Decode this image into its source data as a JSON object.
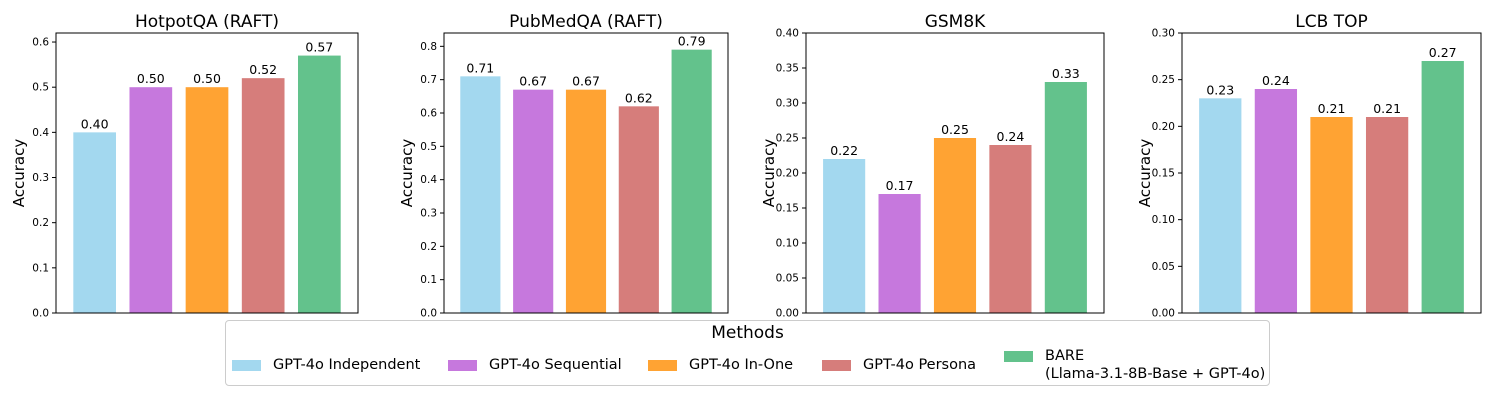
{
  "chart_data": [
    {
      "type": "bar",
      "title": "HotpotQA (RAFT)",
      "ylabel": "Accuracy",
      "xlabel": "",
      "ylim": [
        0,
        0.62
      ],
      "yticks": [
        "0.0",
        "0.1",
        "0.2",
        "0.3",
        "0.4",
        "0.5",
        "0.6"
      ],
      "yticks_values": [
        0,
        0.1,
        0.2,
        0.3,
        0.4,
        0.5,
        0.6
      ],
      "categories": [
        "GPT-4o Independent",
        "GPT-4o Sequential",
        "GPT-4o In-One",
        "GPT-4o Persona",
        "BARE"
      ],
      "values": [
        0.4,
        0.5,
        0.5,
        0.52,
        0.57
      ],
      "data_labels": [
        "0.40",
        "0.50",
        "0.50",
        "0.52",
        "0.57"
      ]
    },
    {
      "type": "bar",
      "title": "PubMedQA (RAFT)",
      "ylabel": "Accuracy",
      "xlabel": "",
      "ylim": [
        0,
        0.84
      ],
      "yticks": [
        "0.0",
        "0.1",
        "0.2",
        "0.3",
        "0.4",
        "0.5",
        "0.6",
        "0.7",
        "0.8"
      ],
      "yticks_values": [
        0,
        0.1,
        0.2,
        0.3,
        0.4,
        0.5,
        0.6,
        0.7,
        0.8
      ],
      "categories": [
        "GPT-4o Independent",
        "GPT-4o Sequential",
        "GPT-4o In-One",
        "GPT-4o Persona",
        "BARE"
      ],
      "values": [
        0.71,
        0.67,
        0.67,
        0.62,
        0.79
      ],
      "data_labels": [
        "0.71",
        "0.67",
        "0.67",
        "0.62",
        "0.79"
      ]
    },
    {
      "type": "bar",
      "title": "GSM8K",
      "ylabel": "Accuracy",
      "xlabel": "",
      "ylim": [
        0,
        0.4
      ],
      "yticks": [
        "0.00",
        "0.05",
        "0.10",
        "0.15",
        "0.20",
        "0.25",
        "0.30",
        "0.35",
        "0.40"
      ],
      "yticks_values": [
        0,
        0.05,
        0.1,
        0.15,
        0.2,
        0.25,
        0.3,
        0.35,
        0.4
      ],
      "categories": [
        "GPT-4o Independent",
        "GPT-4o Sequential",
        "GPT-4o In-One",
        "GPT-4o Persona",
        "BARE"
      ],
      "values": [
        0.22,
        0.17,
        0.25,
        0.24,
        0.33
      ],
      "data_labels": [
        "0.22",
        "0.17",
        "0.25",
        "0.24",
        "0.33"
      ]
    },
    {
      "type": "bar",
      "title": "LCB TOP",
      "ylabel": "Accuracy",
      "xlabel": "",
      "ylim": [
        0,
        0.3
      ],
      "yticks": [
        "0.00",
        "0.05",
        "0.10",
        "0.15",
        "0.20",
        "0.25",
        "0.30"
      ],
      "yticks_values": [
        0,
        0.05,
        0.1,
        0.15,
        0.2,
        0.25,
        0.3
      ],
      "categories": [
        "GPT-4o Independent",
        "GPT-4o Sequential",
        "GPT-4o In-One",
        "GPT-4o Persona",
        "BARE"
      ],
      "values": [
        0.23,
        0.24,
        0.21,
        0.21,
        0.27
      ],
      "data_labels": [
        "0.23",
        "0.24",
        "0.21",
        "0.21",
        "0.27"
      ]
    }
  ],
  "colors": [
    "#a3d8ef",
    "#c678dd",
    "#ffa333",
    "#d67d7b",
    "#63c28c"
  ],
  "legend": {
    "title": "Methods",
    "items": [
      {
        "label": "GPT-4o Independent",
        "color": "#a3d8ef"
      },
      {
        "label": "GPT-4o Sequential",
        "color": "#c678dd"
      },
      {
        "label": "GPT-4o In-One",
        "color": "#ffa333"
      },
      {
        "label": "GPT-4o Persona",
        "color": "#d67d7b"
      },
      {
        "label": "BARE\n(Llama-3.1-8B-Base + GPT-4o)",
        "color": "#63c28c"
      }
    ]
  }
}
